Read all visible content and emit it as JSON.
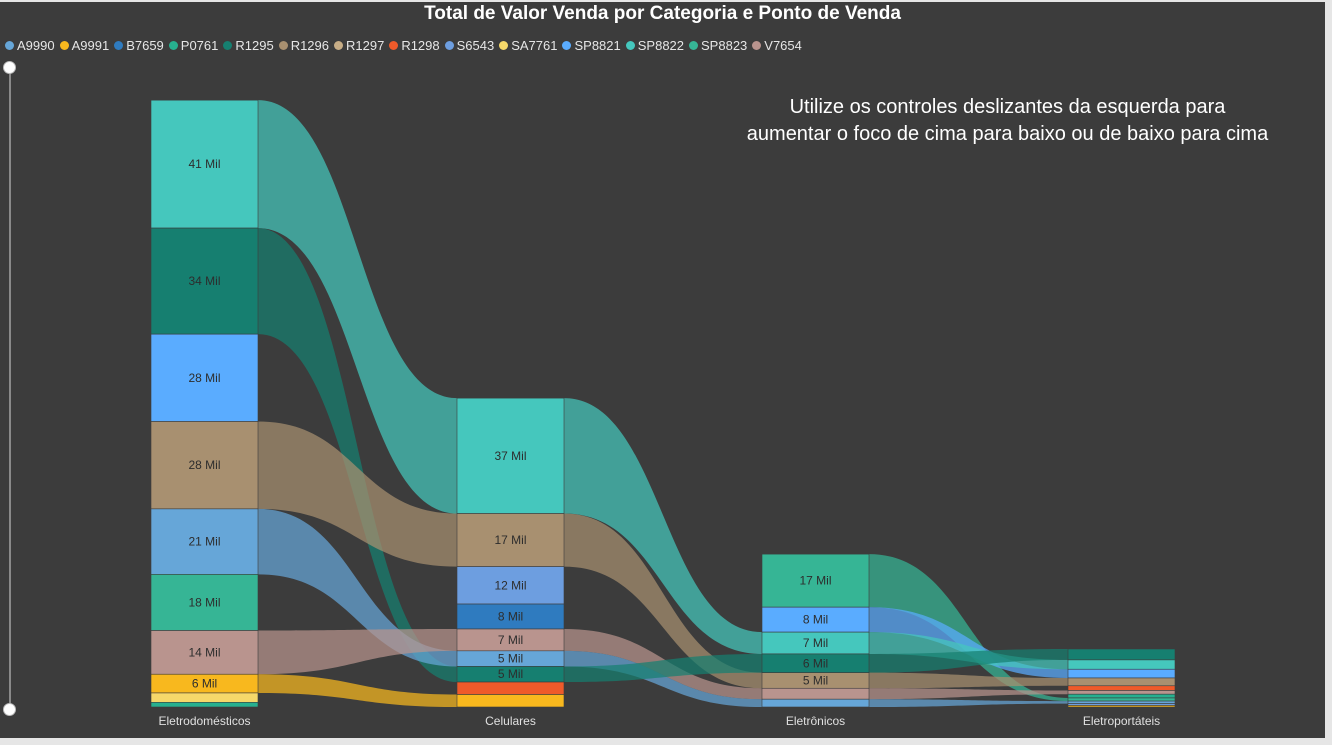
{
  "title": "Total de Valor Venda por Categoria e Ponto de Venda",
  "note": {
    "line1": "Utilize os controles deslizantes da esquerda para",
    "line2": "aumentar o foco de cima para baixo ou de baixo para cima"
  },
  "legend": [
    {
      "name": "A9990",
      "color": "#66a6d8"
    },
    {
      "name": "A9991",
      "color": "#f8b81e"
    },
    {
      "name": "B7659",
      "color": "#2f7bbf"
    },
    {
      "name": "P0761",
      "color": "#27b08f"
    },
    {
      "name": "R1295",
      "color": "#167f70"
    },
    {
      "name": "R1296",
      "color": "#a89070"
    },
    {
      "name": "R1297",
      "color": "#c7ad86"
    },
    {
      "name": "R1298",
      "color": "#ee5a2a"
    },
    {
      "name": "S6543",
      "color": "#6d9ee0"
    },
    {
      "name": "SA7761",
      "color": "#f6d86a"
    },
    {
      "name": "SP8821",
      "color": "#5aacff"
    },
    {
      "name": "SP8822",
      "color": "#45c7bd"
    },
    {
      "name": "SP8823",
      "color": "#36b595"
    },
    {
      "name": "V7654",
      "color": "#b9948e"
    }
  ],
  "chart_data": {
    "type": "sankey",
    "unit": "Mil",
    "categories": [
      {
        "name": "Eletrodomésticos",
        "nodes": [
          {
            "series": "SP8822",
            "value": 41,
            "label": "41 Mil"
          },
          {
            "series": "R1295",
            "value": 34,
            "label": "34 Mil"
          },
          {
            "series": "SP8821",
            "value": 28,
            "label": "28 Mil"
          },
          {
            "series": "R1296",
            "value": 28,
            "label": "28 Mil"
          },
          {
            "series": "A9990",
            "value": 21,
            "label": "21 Mil"
          },
          {
            "series": "SP8823",
            "value": 18,
            "label": "18 Mil"
          },
          {
            "series": "V7654",
            "value": 14,
            "label": "14 Mil"
          },
          {
            "series": "A9991",
            "value": 6,
            "label": "6 Mil"
          },
          {
            "series": "SA7761",
            "value": 3,
            "label": ""
          },
          {
            "series": "P0761",
            "value": 1.5,
            "label": ""
          }
        ]
      },
      {
        "name": "Celulares",
        "nodes": [
          {
            "series": "SP8822",
            "value": 37,
            "label": "37 Mil"
          },
          {
            "series": "R1296",
            "value": 17,
            "label": "17 Mil"
          },
          {
            "series": "S6543",
            "value": 12,
            "label": "12 Mil"
          },
          {
            "series": "B7659",
            "value": 8,
            "label": "8 Mil"
          },
          {
            "series": "V7654",
            "value": 7,
            "label": "7 Mil"
          },
          {
            "series": "A9990",
            "value": 5,
            "label": "5 Mil"
          },
          {
            "series": "R1295",
            "value": 5,
            "label": "5 Mil"
          },
          {
            "series": "R1298",
            "value": 4,
            "label": ""
          },
          {
            "series": "A9991",
            "value": 4,
            "label": ""
          }
        ]
      },
      {
        "name": "Eletrônicos",
        "nodes": [
          {
            "series": "SP8823",
            "value": 17,
            "label": "17 Mil"
          },
          {
            "series": "SP8821",
            "value": 8,
            "label": "8 Mil"
          },
          {
            "series": "SP8822",
            "value": 7,
            "label": "7 Mil"
          },
          {
            "series": "R1295",
            "value": 6,
            "label": "6 Mil"
          },
          {
            "series": "R1296",
            "value": 5,
            "label": "5 Mil"
          },
          {
            "series": "V7654",
            "value": 3.5,
            "label": ""
          },
          {
            "series": "A9990",
            "value": 2.5,
            "label": ""
          }
        ]
      },
      {
        "name": "Eletroportáteis",
        "nodes": [
          {
            "series": "R1295",
            "value": 3.5,
            "label": ""
          },
          {
            "series": "SP8822",
            "value": 3,
            "label": ""
          },
          {
            "series": "SP8821",
            "value": 2.8,
            "label": ""
          },
          {
            "series": "R1296",
            "value": 2.5,
            "label": ""
          },
          {
            "series": "R1298",
            "value": 1.5,
            "label": ""
          },
          {
            "series": "V7654",
            "value": 1.2,
            "label": ""
          },
          {
            "series": "P0761",
            "value": 1.2,
            "label": ""
          },
          {
            "series": "SP8823",
            "value": 1,
            "label": ""
          },
          {
            "series": "A9990",
            "value": 0.8,
            "label": ""
          },
          {
            "series": "S6543",
            "value": 0.6,
            "label": ""
          },
          {
            "series": "A9991",
            "value": 0.5,
            "label": ""
          }
        ]
      }
    ]
  }
}
